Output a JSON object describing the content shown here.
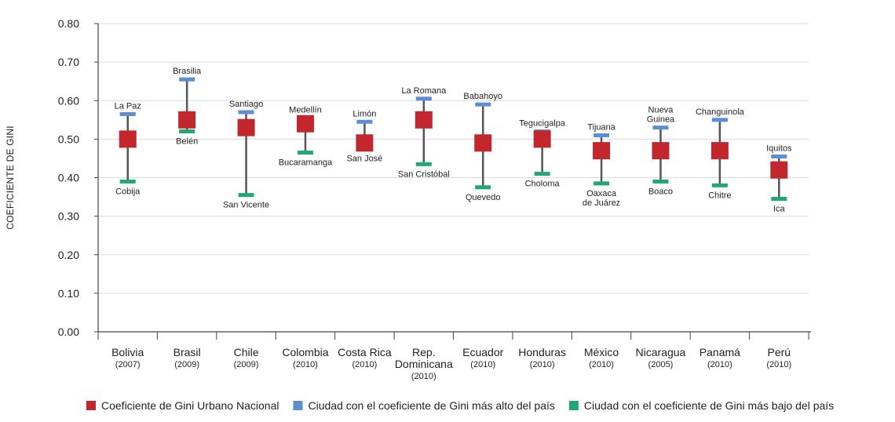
{
  "chart_data": {
    "type": "range",
    "ylabel": "COEFICIENTE DE GINI",
    "ylim": [
      0,
      0.8
    ],
    "yticks": [
      "0.00",
      "0.10",
      "0.20",
      "0.30",
      "0.40",
      "0.50",
      "0.60",
      "0.70",
      "0.80"
    ],
    "grid": true,
    "legend_position": "bottom",
    "categories": [
      {
        "name": [
          "Bolivia"
        ],
        "year": "(2007)",
        "national": 0.5,
        "high": 0.565,
        "low": 0.39,
        "high_city": [
          "La Paz"
        ],
        "low_city": [
          "Cobija"
        ]
      },
      {
        "name": [
          "Brasil"
        ],
        "year": "(2009)",
        "national": 0.55,
        "high": 0.655,
        "low": 0.52,
        "high_city": [
          "Brasilia"
        ],
        "low_city": [
          "Belén"
        ]
      },
      {
        "name": [
          "Chile"
        ],
        "year": "(2009)",
        "national": 0.53,
        "high": 0.57,
        "low": 0.355,
        "high_city": [
          "Santiago"
        ],
        "low_city": [
          "San Vicente"
        ]
      },
      {
        "name": [
          "Colombia"
        ],
        "year": "(2010)",
        "national": 0.54,
        "high": 0.555,
        "low": 0.465,
        "high_city": [
          "Medellín"
        ],
        "low_city": [
          "Bucaramanga"
        ]
      },
      {
        "name": [
          "Costa Rica"
        ],
        "year": "(2010)",
        "national": 0.49,
        "high": 0.545,
        "low": 0.475,
        "high_city": [
          "Limón"
        ],
        "low_city": [
          "San José"
        ]
      },
      {
        "name": [
          "Rep.",
          "Dominicana"
        ],
        "year": "(2010)",
        "national": 0.55,
        "high": 0.605,
        "low": 0.435,
        "high_city": [
          "La Romana"
        ],
        "low_city": [
          "San Cristóbal"
        ]
      },
      {
        "name": [
          "Ecuador"
        ],
        "year": "(2010)",
        "national": 0.49,
        "high": 0.59,
        "low": 0.375,
        "high_city": [
          "Babahoyo"
        ],
        "low_city": [
          "Quevedo"
        ]
      },
      {
        "name": [
          "Honduras"
        ],
        "year": "(2010)",
        "national": 0.5,
        "high": 0.52,
        "low": 0.41,
        "high_city": [
          "Tegucigalpa"
        ],
        "low_city": [
          "Choloma"
        ]
      },
      {
        "name": [
          "México"
        ],
        "year": "(2010)",
        "national": 0.47,
        "high": 0.51,
        "low": 0.385,
        "high_city": [
          "Tijuana"
        ],
        "low_city": [
          "Oaxaca",
          "de Juárez"
        ]
      },
      {
        "name": [
          "Nicaragua"
        ],
        "year": "(2005)",
        "national": 0.47,
        "high": 0.53,
        "low": 0.39,
        "high_city": [
          "Nueva",
          "Guinea"
        ],
        "low_city": [
          "Boaco"
        ]
      },
      {
        "name": [
          "Panamá"
        ],
        "year": "(2010)",
        "national": 0.47,
        "high": 0.55,
        "low": 0.38,
        "high_city": [
          "Changuinola"
        ],
        "low_city": [
          "Chitre"
        ]
      },
      {
        "name": [
          "Perú"
        ],
        "year": "(2010)",
        "national": 0.42,
        "high": 0.455,
        "low": 0.345,
        "high_city": [
          "Iquitos"
        ],
        "low_city": [
          "Ica"
        ]
      }
    ],
    "legend": [
      {
        "label": "Coeficiente de Gini Urbano Nacional",
        "color": "#c1272d"
      },
      {
        "label": "Ciudad con el coeficiente de Gini más alto del país",
        "color": "#5b8ed6"
      },
      {
        "label": "Ciudad con el coeficiente de Gini más bajo del país",
        "color": "#1fa774"
      }
    ],
    "colors": {
      "national": "#c1272d",
      "high": "#5b8ed6",
      "low": "#1fa774",
      "whisker": "#555555",
      "grid": "#dcdcdc",
      "axis": "#444444"
    }
  }
}
